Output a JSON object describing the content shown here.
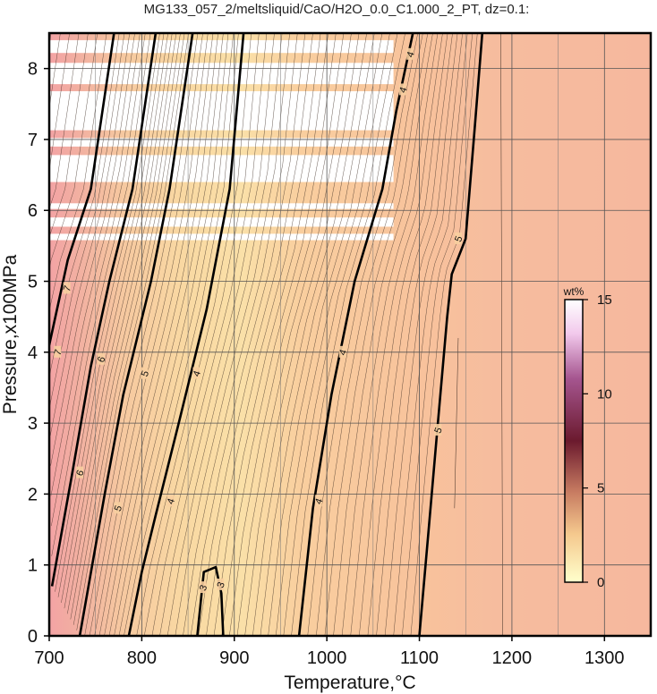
{
  "title": "MG133_057_2/meltsliquid/CaO/H2O_0.0_C1.000_2_PT, dz=0.1:",
  "chart_data": {
    "type": "heatmap",
    "xlabel": "Temperature,°C",
    "ylabel": "Pressure,x100MPa",
    "xlim": [
      700,
      1350
    ],
    "ylim": [
      0,
      8.5
    ],
    "xticks": [
      700,
      800,
      900,
      1000,
      1100,
      1200,
      1300
    ],
    "yticks": [
      0,
      1,
      2,
      3,
      4,
      5,
      6,
      7,
      8
    ],
    "grid": true,
    "colorbar": {
      "unit": "wt%",
      "range": [
        0,
        15
      ],
      "ticks": [
        0,
        5,
        10,
        15
      ],
      "stops": [
        "#ffffcc",
        "#f5c98e",
        "#c77b61",
        "#6b1a2e",
        "#a5558f",
        "#f2c9ec",
        "#ffffff"
      ]
    },
    "missing_data_bands_pressure": [
      [
        8.22,
        8.4
      ],
      [
        7.78,
        8.08
      ],
      [
        7.13,
        7.68
      ],
      [
        6.9,
        7.02
      ],
      [
        6.4,
        6.78
      ],
      [
        6.02,
        6.1
      ],
      [
        5.77,
        5.9
      ],
      [
        5.58,
        5.67
      ]
    ],
    "contours": [
      {
        "level": 7,
        "points": [
          [
            700,
            4.1
          ],
          [
            720,
            5.3
          ],
          [
            745,
            6.3
          ],
          [
            770,
            8.5
          ]
        ]
      },
      {
        "level": 6,
        "points": [
          [
            703,
            0.7
          ],
          [
            725,
            2.3
          ],
          [
            745,
            3.8
          ],
          [
            765,
            5.0
          ],
          [
            790,
            6.3
          ],
          [
            815,
            8.5
          ]
        ]
      },
      {
        "level": 5,
        "points": [
          [
            733,
            0.0
          ],
          [
            760,
            2.0
          ],
          [
            780,
            3.4
          ],
          [
            810,
            5.0
          ],
          [
            830,
            6.3
          ],
          [
            855,
            8.5
          ]
        ]
      },
      {
        "level": 4,
        "points": [
          [
            786,
            0.0
          ],
          [
            800,
            0.9
          ],
          [
            815,
            1.7
          ],
          [
            840,
            3.0
          ],
          [
            870,
            4.6
          ],
          [
            895,
            6.3
          ],
          [
            910,
            8.5
          ]
        ]
      },
      {
        "level": 3,
        "points": [
          [
            860,
            0.0
          ],
          [
            867,
            0.9
          ],
          [
            880,
            0.97
          ],
          [
            886,
            0.6
          ],
          [
            888,
            0.0
          ]
        ]
      },
      {
        "level": 4,
        "points": [
          [
            970,
            0.0
          ],
          [
            985,
            1.8
          ],
          [
            1005,
            3.4
          ],
          [
            1030,
            5.0
          ],
          [
            1060,
            6.3
          ],
          [
            1075,
            7.4
          ],
          [
            1093,
            8.5
          ]
        ]
      },
      {
        "level": 5,
        "points": [
          [
            1100,
            0.0
          ],
          [
            1110,
            1.5
          ],
          [
            1120,
            3.0
          ],
          [
            1130,
            4.5
          ],
          [
            1135,
            5.1
          ],
          [
            1150,
            5.6
          ],
          [
            1160,
            7.2
          ],
          [
            1168,
            8.5
          ]
        ]
      }
    ],
    "contour_labels": [
      {
        "text": "7",
        "x": 709,
        "y": 4.0
      },
      {
        "text": "7",
        "x": 719,
        "y": 4.9
      },
      {
        "text": "6",
        "x": 733,
        "y": 2.3
      },
      {
        "text": "6",
        "x": 756,
        "y": 3.9
      },
      {
        "text": "5",
        "x": 774,
        "y": 1.8
      },
      {
        "text": "5",
        "x": 803,
        "y": 3.7
      },
      {
        "text": "4",
        "x": 831,
        "y": 1.9
      },
      {
        "text": "4",
        "x": 859,
        "y": 3.7
      },
      {
        "text": "3",
        "x": 866,
        "y": 0.68
      },
      {
        "text": "3",
        "x": 885,
        "y": 0.72
      },
      {
        "text": "4",
        "x": 991,
        "y": 1.9
      },
      {
        "text": "4",
        "x": 1017,
        "y": 4.0
      },
      {
        "text": "4",
        "x": 1082,
        "y": 7.7
      },
      {
        "text": "4",
        "x": 1090,
        "y": 8.2
      },
      {
        "text": "5",
        "x": 1120,
        "y": 2.9
      },
      {
        "text": "5",
        "x": 1142,
        "y": 5.6
      }
    ]
  }
}
